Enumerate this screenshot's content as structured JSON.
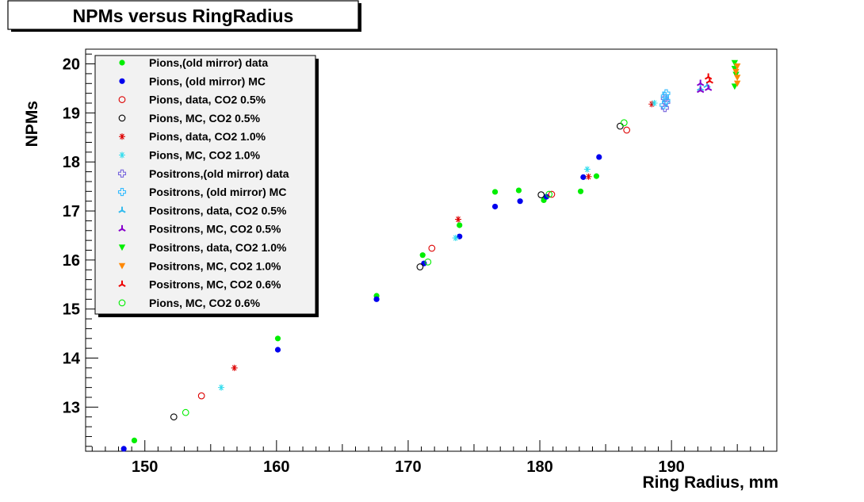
{
  "chart_data": {
    "type": "scatter",
    "title": "NPMs versus RingRadius",
    "xlabel": "Ring Radius, mm",
    "ylabel": "NPMs",
    "xlim": [
      145.5,
      198.0
    ],
    "ylim": [
      12.1,
      20.3
    ],
    "x_ticks": [
      "150",
      "160",
      "170",
      "180",
      "190"
    ],
    "y_ticks": [
      "13",
      "14",
      "15",
      "16",
      "17",
      "18",
      "19",
      "20"
    ],
    "grid": false,
    "legend_position": "top-left",
    "series": [
      {
        "name": "Pions,(old mirror) data",
        "marker": "dot",
        "color": "#00ee00",
        "points": [
          [
            149.2,
            12.32
          ],
          [
            160.1,
            14.4
          ],
          [
            167.6,
            15.27
          ],
          [
            171.1,
            16.1
          ],
          [
            173.9,
            16.71
          ],
          [
            176.6,
            17.39
          ],
          [
            178.4,
            17.42
          ],
          [
            180.3,
            17.22
          ],
          [
            183.1,
            17.4
          ],
          [
            184.3,
            17.71
          ]
        ]
      },
      {
        "name": "Pions, (old mirror) MC",
        "marker": "dot",
        "color": "#0000ee",
        "points": [
          [
            148.4,
            12.15
          ],
          [
            160.1,
            14.17
          ],
          [
            167.6,
            15.2
          ],
          [
            171.2,
            15.93
          ],
          [
            173.9,
            16.48
          ],
          [
            176.6,
            17.09
          ],
          [
            178.5,
            17.2
          ],
          [
            180.5,
            17.29
          ],
          [
            183.3,
            17.69
          ],
          [
            184.5,
            18.1
          ]
        ]
      },
      {
        "name": "Pions, data,  CO2 0.5%",
        "marker": "circle",
        "color": "#dd0000",
        "points": [
          [
            154.3,
            13.23
          ],
          [
            171.8,
            16.24
          ],
          [
            180.9,
            17.34
          ],
          [
            186.6,
            18.65
          ]
        ]
      },
      {
        "name": "Pions, MC,  CO2 0.5%",
        "marker": "circle",
        "color": "#000000",
        "points": [
          [
            152.2,
            12.8
          ],
          [
            170.9,
            15.86
          ],
          [
            180.1,
            17.33
          ],
          [
            186.1,
            18.73
          ]
        ]
      },
      {
        "name": "Pions, data,  CO2 1.0%",
        "marker": "asterisk",
        "color": "#dd0000",
        "points": [
          [
            156.8,
            13.8
          ],
          [
            173.8,
            16.83
          ],
          [
            183.7,
            17.7
          ],
          [
            188.5,
            19.18
          ]
        ]
      },
      {
        "name": "Pions, MC,  CO2 1.0%",
        "marker": "asterisk",
        "color": "#33ddee",
        "points": [
          [
            155.8,
            13.4
          ],
          [
            173.6,
            16.45
          ],
          [
            183.6,
            17.85
          ],
          [
            188.7,
            19.2
          ]
        ]
      },
      {
        "name": "Positrons,(old mirror) data",
        "marker": "cross",
        "color": "#7766dd",
        "points": [
          [
            189.5,
            19.1
          ],
          [
            189.6,
            19.22
          ],
          [
            189.5,
            19.3
          ]
        ]
      },
      {
        "name": "Positrons, (old mirror) MC",
        "marker": "cross",
        "color": "#33bbff",
        "points": [
          [
            189.4,
            19.16
          ],
          [
            189.6,
            19.25
          ],
          [
            189.5,
            19.34
          ],
          [
            189.6,
            19.4
          ]
        ]
      },
      {
        "name": "Positrons, data,  CO2 0.5%",
        "marker": "tristar",
        "color": "#33bbee",
        "points": [
          [
            192.2,
            19.5
          ],
          [
            192.7,
            19.56
          ]
        ]
      },
      {
        "name": "Positrons, MC,  CO2 0.5%",
        "marker": "tristar",
        "color": "#8800cc",
        "points": [
          [
            192.2,
            19.6
          ],
          [
            192.8,
            19.5
          ],
          [
            192.2,
            19.46
          ]
        ]
      },
      {
        "name": "Positrons, data,  CO2 1.0%",
        "marker": "triangle-down",
        "color": "#00ee00",
        "points": [
          [
            194.8,
            20.02
          ],
          [
            194.8,
            19.9
          ],
          [
            194.9,
            19.78
          ],
          [
            194.8,
            19.54
          ]
        ]
      },
      {
        "name": "Positrons, MC,  CO2 1.0%",
        "marker": "triangle-down",
        "color": "#ff8800",
        "points": [
          [
            195.0,
            19.95
          ],
          [
            194.9,
            19.84
          ],
          [
            195.0,
            19.72
          ],
          [
            195.0,
            19.6
          ]
        ]
      },
      {
        "name": "Positrons, MC,  CO2 0.6%",
        "marker": "tristar",
        "color": "#ee0000",
        "points": [
          [
            192.8,
            19.73
          ],
          [
            192.9,
            19.65
          ]
        ]
      },
      {
        "name": "Pions, MC,  CO2 0.6%",
        "marker": "circle",
        "color": "#00ee00",
        "points": [
          [
            153.1,
            12.89
          ],
          [
            171.5,
            15.96
          ],
          [
            180.7,
            17.34
          ],
          [
            186.4,
            18.8
          ]
        ]
      }
    ]
  }
}
